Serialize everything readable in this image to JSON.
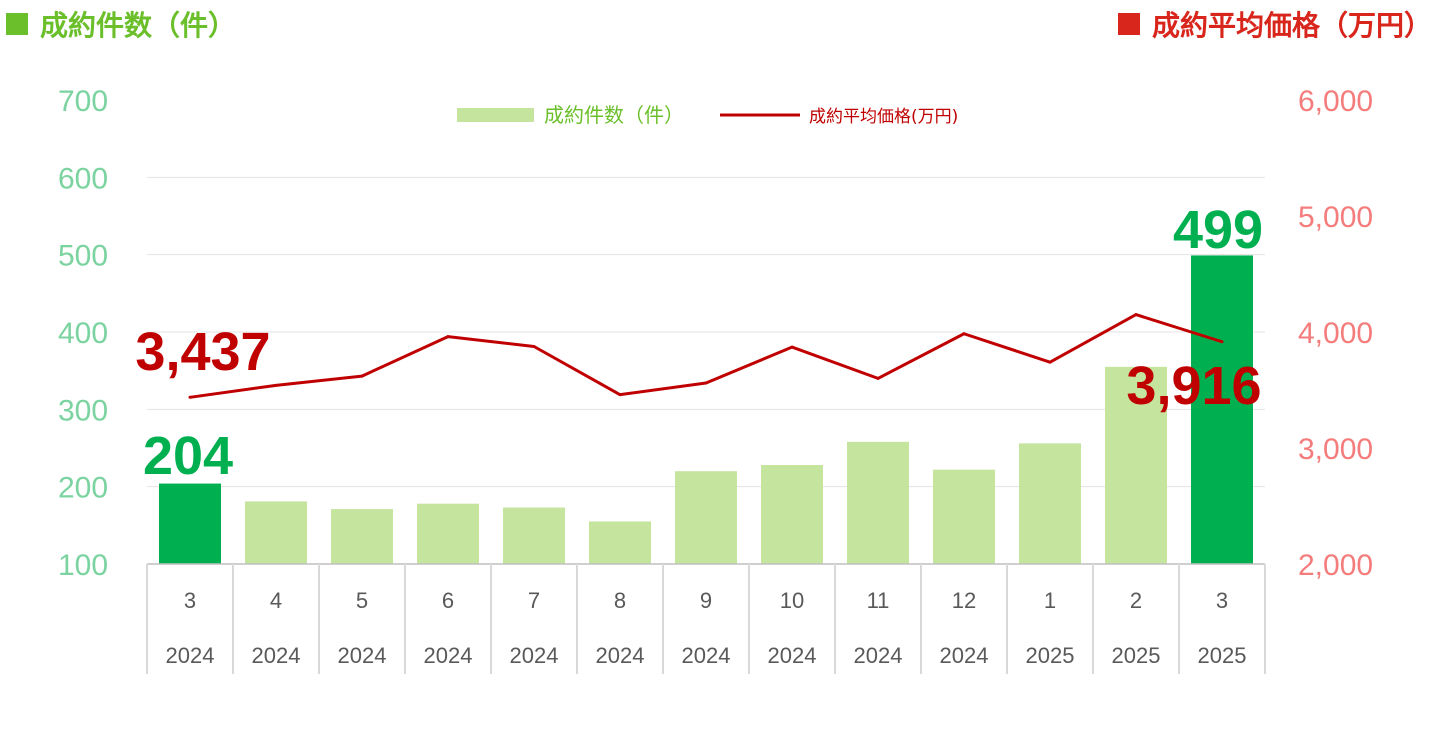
{
  "header": {
    "left_label": "成約件数（件）",
    "right_label": "成約平均価格（万円）",
    "left_color": "#6abf2a",
    "right_color": "#d9261c"
  },
  "chart_data": {
    "type": "bar+line",
    "categories": [
      {
        "month": "3",
        "year": "2024"
      },
      {
        "month": "4",
        "year": "2024"
      },
      {
        "month": "5",
        "year": "2024"
      },
      {
        "month": "6",
        "year": "2024"
      },
      {
        "month": "7",
        "year": "2024"
      },
      {
        "month": "8",
        "year": "2024"
      },
      {
        "month": "9",
        "year": "2024"
      },
      {
        "month": "10",
        "year": "2024"
      },
      {
        "month": "11",
        "year": "2024"
      },
      {
        "month": "12",
        "year": "2024"
      },
      {
        "month": "1",
        "year": "2025"
      },
      {
        "month": "2",
        "year": "2025"
      },
      {
        "month": "3",
        "year": "2025"
      }
    ],
    "series": [
      {
        "name": "成約件数（件）",
        "type": "bar",
        "axis": "left",
        "values": [
          204,
          181,
          171,
          178,
          173,
          155,
          220,
          228,
          258,
          222,
          256,
          355,
          499
        ],
        "color": "#c5e59f",
        "highlight_color": "#00b050",
        "highlight_indices": [
          0,
          12
        ]
      },
      {
        "name": "成約平均価格(万円)",
        "type": "line",
        "axis": "right",
        "values": [
          3437,
          3540,
          3620,
          3960,
          3875,
          3460,
          3560,
          3870,
          3600,
          3985,
          3740,
          4150,
          3916
        ],
        "color": "#c00000"
      }
    ],
    "left_axis": {
      "ylim": [
        100,
        700
      ],
      "ticks": [
        "100",
        "200",
        "300",
        "400",
        "500",
        "600",
        "700"
      ],
      "color": "#7bd3a0"
    },
    "right_axis": {
      "ylim": [
        2000,
        6000
      ],
      "ticks": [
        "2,000",
        "3,000",
        "4,000",
        "5,000",
        "6,000"
      ],
      "color": "#f47c7c"
    },
    "annotations": [
      {
        "text": "204",
        "series": 0,
        "index": 0,
        "color": "#00b050"
      },
      {
        "text": "499",
        "series": 0,
        "index": 12,
        "color": "#00b050"
      },
      {
        "text": "3,437",
        "series": 1,
        "index": 0,
        "color": "#c00000"
      },
      {
        "text": "3,916",
        "series": 1,
        "index": 12,
        "color": "#c00000"
      }
    ],
    "legend_position": "top-center",
    "grid": true
  }
}
